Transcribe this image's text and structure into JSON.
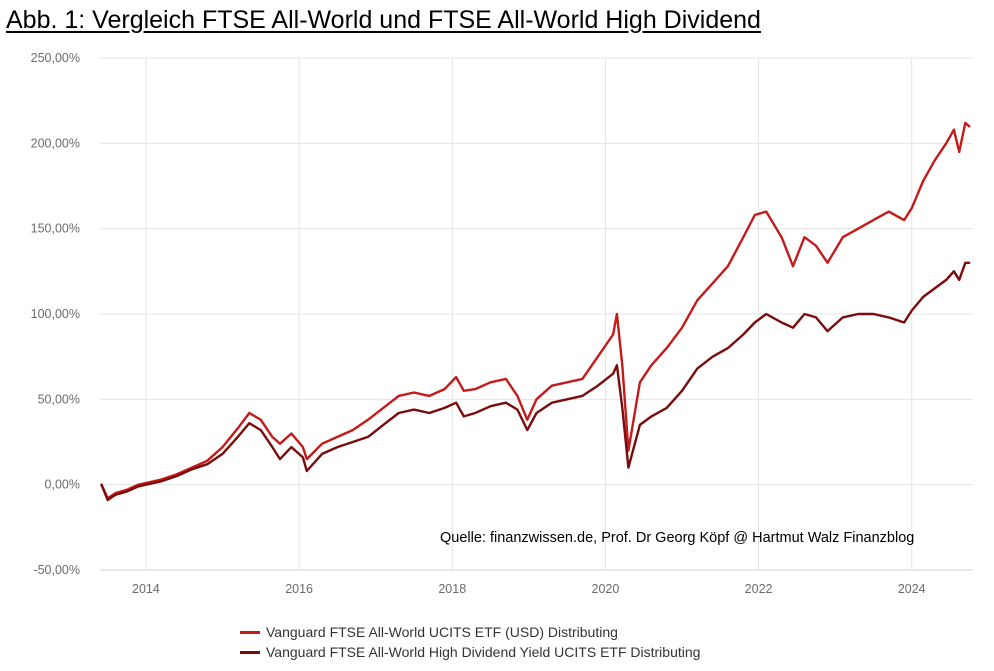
{
  "title": "Abb. 1: Vergleich FTSE All-World und FTSE All-World High Dividend",
  "source_note": "Quelle: finanzwissen.de, Prof. Dr Georg Köpf @ Hartmut Walz Finanzblog",
  "chart_data": {
    "type": "line",
    "title": "Abb. 1: Vergleich FTSE All-World und FTSE All-World High Dividend",
    "xlabel": "",
    "ylabel": "",
    "xlim": [
      2013.4,
      2024.8
    ],
    "ylim": [
      -50,
      250
    ],
    "x_ticks": [
      2014,
      2016,
      2018,
      2020,
      2022,
      2024
    ],
    "x_tick_labels": [
      "2014",
      "2016",
      "2018",
      "2020",
      "2022",
      "2024"
    ],
    "y_ticks": [
      -50,
      0,
      50,
      100,
      150,
      200,
      250
    ],
    "y_tick_labels": [
      "-50,00%",
      "0,00%",
      "50,00%",
      "100,00%",
      "150,00%",
      "200,00%",
      "250,00%"
    ],
    "grid": true,
    "legend_position": "bottom",
    "series": [
      {
        "name": "Vanguard FTSE All-World UCITS ETF (USD) Distributing",
        "color": "#c41a1a",
        "x": [
          2013.42,
          2013.5,
          2013.6,
          2013.75,
          2013.9,
          2014.0,
          2014.2,
          2014.4,
          2014.6,
          2014.8,
          2015.0,
          2015.2,
          2015.35,
          2015.5,
          2015.65,
          2015.75,
          2015.9,
          2016.05,
          2016.1,
          2016.3,
          2016.5,
          2016.7,
          2016.9,
          2017.1,
          2017.3,
          2017.5,
          2017.7,
          2017.9,
          2018.05,
          2018.15,
          2018.3,
          2018.5,
          2018.7,
          2018.85,
          2018.98,
          2019.1,
          2019.3,
          2019.5,
          2019.7,
          2019.9,
          2020.1,
          2020.15,
          2020.22,
          2020.3,
          2020.45,
          2020.6,
          2020.8,
          2021.0,
          2021.2,
          2021.4,
          2021.6,
          2021.8,
          2021.95,
          2022.1,
          2022.3,
          2022.45,
          2022.6,
          2022.75,
          2022.9,
          2023.1,
          2023.3,
          2023.5,
          2023.7,
          2023.9,
          2024.0,
          2024.15,
          2024.3,
          2024.45,
          2024.55,
          2024.62,
          2024.7,
          2024.75
        ],
        "values": [
          0,
          -8,
          -5,
          -3,
          0,
          1,
          3,
          6,
          10,
          14,
          22,
          33,
          42,
          38,
          28,
          24,
          30,
          22,
          15,
          24,
          28,
          32,
          38,
          45,
          52,
          54,
          52,
          56,
          63,
          55,
          56,
          60,
          62,
          52,
          38,
          50,
          58,
          60,
          62,
          75,
          88,
          100,
          70,
          20,
          60,
          70,
          80,
          92,
          108,
          118,
          128,
          145,
          158,
          160,
          145,
          128,
          145,
          140,
          130,
          145,
          150,
          155,
          160,
          155,
          162,
          178,
          190,
          200,
          208,
          195,
          212,
          210
        ]
      },
      {
        "name": "Vanguard FTSE All-World High Dividend Yield UCITS ETF Distributing",
        "color": "#7a0c0c",
        "x": [
          2013.42,
          2013.5,
          2013.6,
          2013.75,
          2013.9,
          2014.0,
          2014.2,
          2014.4,
          2014.6,
          2014.8,
          2015.0,
          2015.2,
          2015.35,
          2015.5,
          2015.65,
          2015.75,
          2015.9,
          2016.05,
          2016.1,
          2016.3,
          2016.5,
          2016.7,
          2016.9,
          2017.1,
          2017.3,
          2017.5,
          2017.7,
          2017.9,
          2018.05,
          2018.15,
          2018.3,
          2018.5,
          2018.7,
          2018.85,
          2018.98,
          2019.1,
          2019.3,
          2019.5,
          2019.7,
          2019.9,
          2020.1,
          2020.15,
          2020.22,
          2020.3,
          2020.45,
          2020.6,
          2020.8,
          2021.0,
          2021.2,
          2021.4,
          2021.6,
          2021.8,
          2021.95,
          2022.1,
          2022.3,
          2022.45,
          2022.6,
          2022.75,
          2022.9,
          2023.1,
          2023.3,
          2023.5,
          2023.7,
          2023.9,
          2024.0,
          2024.15,
          2024.3,
          2024.45,
          2024.55,
          2024.62,
          2024.7,
          2024.75
        ],
        "values": [
          0,
          -9,
          -6,
          -4,
          -1,
          0,
          2,
          5,
          9,
          12,
          18,
          28,
          36,
          32,
          22,
          15,
          22,
          16,
          8,
          18,
          22,
          25,
          28,
          35,
          42,
          44,
          42,
          45,
          48,
          40,
          42,
          46,
          48,
          44,
          32,
          42,
          48,
          50,
          52,
          58,
          65,
          70,
          45,
          10,
          35,
          40,
          45,
          55,
          68,
          75,
          80,
          88,
          95,
          100,
          95,
          92,
          100,
          98,
          90,
          98,
          100,
          100,
          98,
          95,
          102,
          110,
          115,
          120,
          125,
          120,
          130,
          130
        ]
      }
    ]
  }
}
